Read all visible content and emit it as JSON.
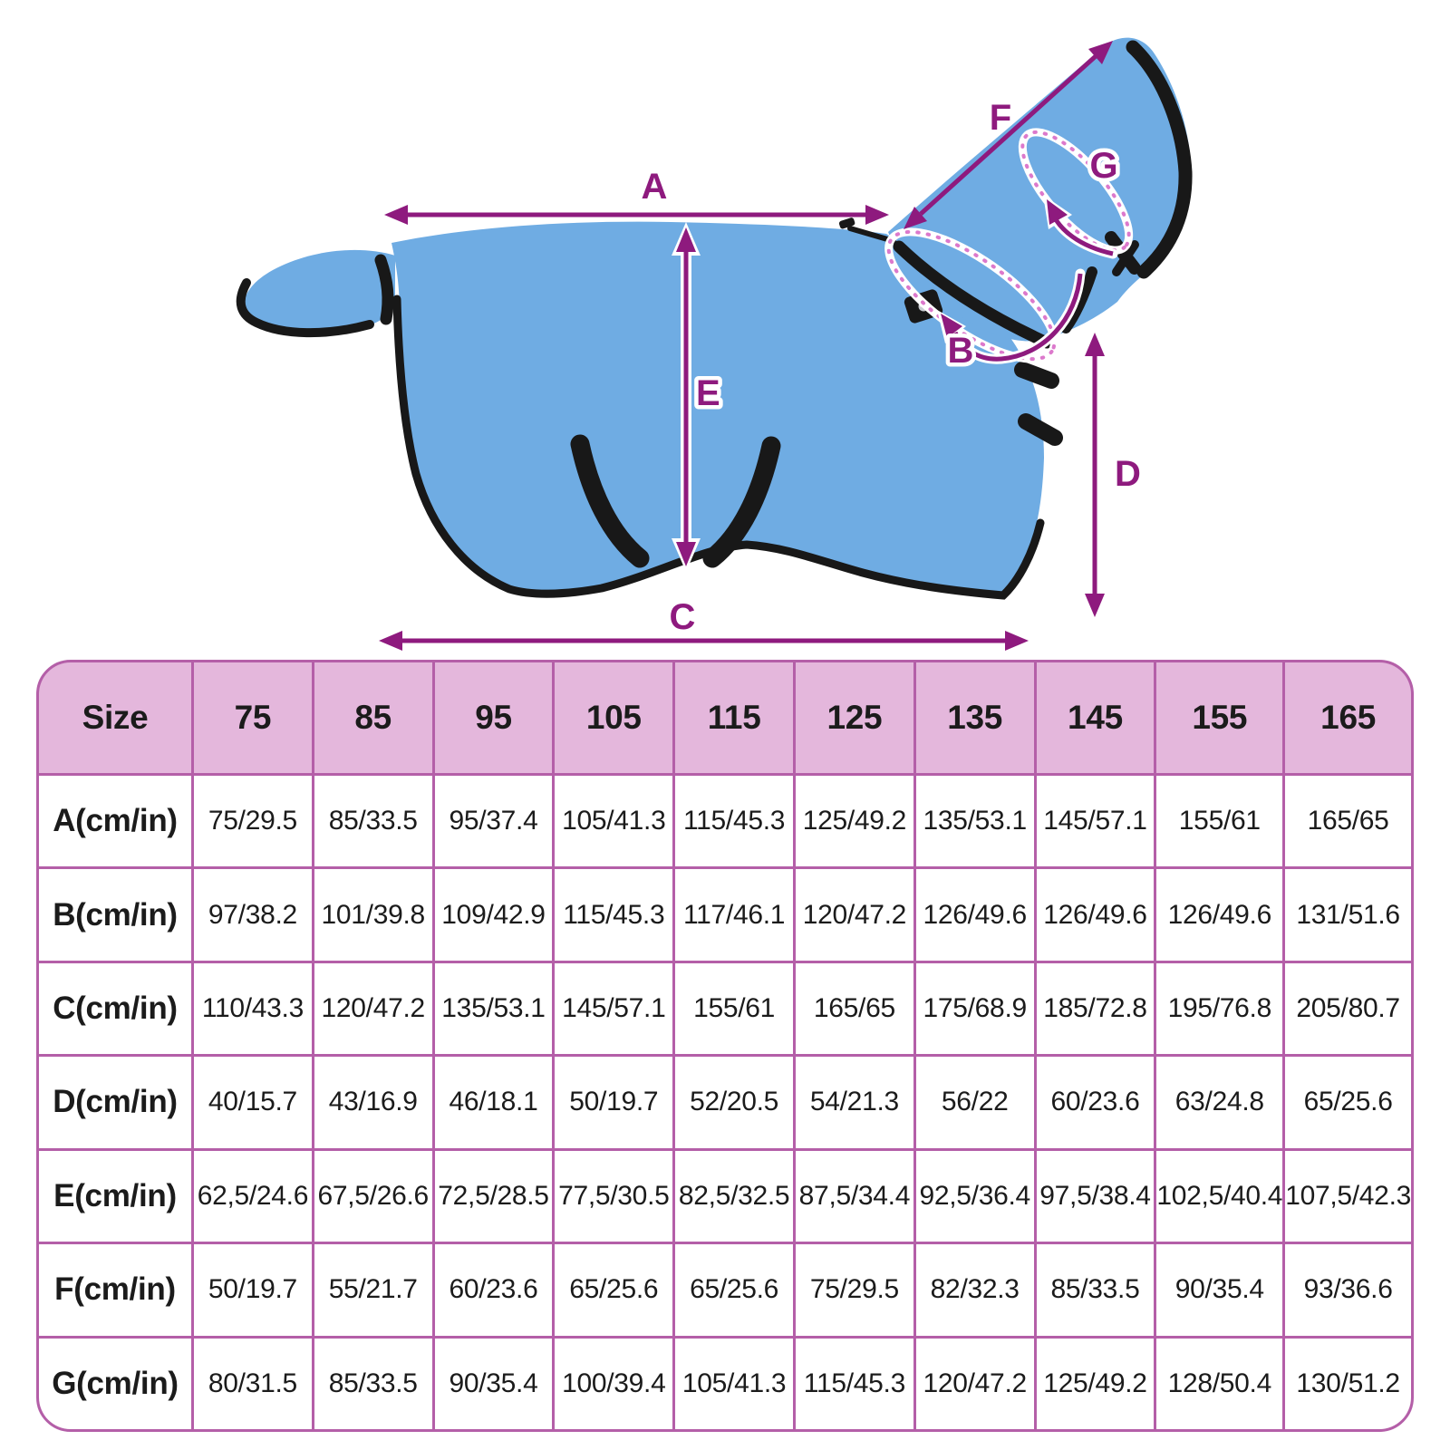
{
  "diagram": {
    "labels": {
      "a": "A",
      "b": "B",
      "c": "C",
      "d": "D",
      "e": "E",
      "f": "F",
      "g": "G"
    },
    "subject": "horse-blanket-measurement-diagram"
  },
  "table": {
    "header": [
      "Size",
      "75",
      "85",
      "95",
      "105",
      "115",
      "125",
      "135",
      "145",
      "155",
      "165"
    ],
    "rows": [
      {
        "label": "A(cm/in)",
        "values": [
          "75/29.5",
          "85/33.5",
          "95/37.4",
          "105/41.3",
          "115/45.3",
          "125/49.2",
          "135/53.1",
          "145/57.1",
          "155/61",
          "165/65"
        ]
      },
      {
        "label": "B(cm/in)",
        "values": [
          "97/38.2",
          "101/39.8",
          "109/42.9",
          "115/45.3",
          "117/46.1",
          "120/47.2",
          "126/49.6",
          "126/49.6",
          "126/49.6",
          "131/51.6"
        ]
      },
      {
        "label": "C(cm/in)",
        "values": [
          "110/43.3",
          "120/47.2",
          "135/53.1",
          "145/57.1",
          "155/61",
          "165/65",
          "175/68.9",
          "185/72.8",
          "195/76.8",
          "205/80.7"
        ]
      },
      {
        "label": "D(cm/in)",
        "values": [
          "40/15.7",
          "43/16.9",
          "46/18.1",
          "50/19.7",
          "52/20.5",
          "54/21.3",
          "56/22",
          "60/23.6",
          "63/24.8",
          "65/25.6"
        ]
      },
      {
        "label": "E(cm/in)",
        "values": [
          "62,5/24.6",
          "67,5/26.6",
          "72,5/28.5",
          "77,5/30.5",
          "82,5/32.5",
          "87,5/34.4",
          "92,5/36.4",
          "97,5/38.4",
          "102,5/40.4",
          "107,5/42.3"
        ]
      },
      {
        "label": "F(cm/in)",
        "values": [
          "50/19.7",
          "55/21.7",
          "60/23.6",
          "65/25.6",
          "65/25.6",
          "75/29.5",
          "82/32.3",
          "85/33.5",
          "90/35.4",
          "93/36.6"
        ]
      },
      {
        "label": "G(cm/in)",
        "values": [
          "80/31.5",
          "85/33.5",
          "90/35.4",
          "100/39.4",
          "105/41.3",
          "115/45.3",
          "120/47.2",
          "125/49.2",
          "128/50.4",
          "130/51.2"
        ]
      }
    ]
  },
  "colors": {
    "arrow_purple": "#8E1A7E",
    "table_border": "#B45FA8",
    "table_header_bg": "#E4B7DC",
    "blanket_blue": "#6FACE3",
    "trim_black": "#181818",
    "cell_bg": "#FFFFFF",
    "text_dark": "#1B1B1B"
  }
}
